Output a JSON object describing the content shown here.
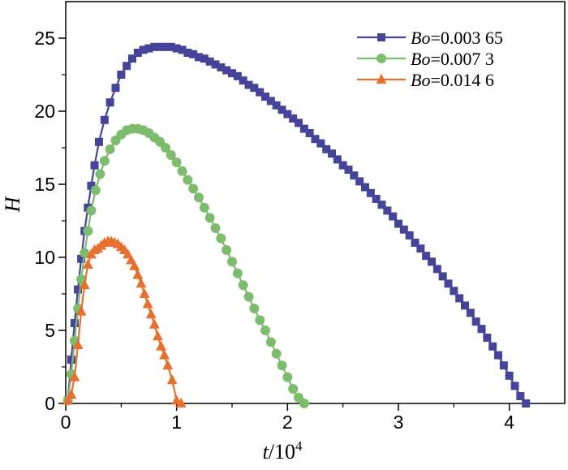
{
  "chart_data": {
    "type": "line",
    "title": "",
    "xlabel": {
      "var": "t",
      "unit": "/10",
      "exp": "4"
    },
    "ylabel": "H",
    "xlim": [
      0,
      4.5
    ],
    "ylim": [
      0,
      27.5
    ],
    "xticks": [
      0,
      1,
      2,
      3,
      4
    ],
    "yticks": [
      0,
      5,
      10,
      15,
      20,
      25
    ],
    "xtick_labels": [
      "0",
      "1",
      "2",
      "3",
      "4"
    ],
    "ytick_labels": [
      "0",
      "5",
      "10",
      "15",
      "20",
      "25"
    ],
    "grid": false,
    "legend_position": "top-right",
    "series": [
      {
        "name_var": "Bo",
        "name_value": "=0.003 65",
        "color": "#45449a",
        "marker": "square",
        "x": [
          0.02,
          0.05,
          0.08,
          0.11,
          0.14,
          0.17,
          0.2,
          0.23,
          0.26,
          0.3,
          0.35,
          0.4,
          0.45,
          0.5,
          0.55,
          0.6,
          0.65,
          0.7,
          0.75,
          0.8,
          0.85,
          0.9,
          0.95,
          1.0,
          1.05,
          1.1,
          1.15,
          1.2,
          1.25,
          1.3,
          1.35,
          1.4,
          1.45,
          1.5,
          1.55,
          1.6,
          1.65,
          1.7,
          1.75,
          1.8,
          1.85,
          1.9,
          1.95,
          2.0,
          2.05,
          2.1,
          2.15,
          2.2,
          2.25,
          2.3,
          2.35,
          2.4,
          2.45,
          2.5,
          2.55,
          2.6,
          2.65,
          2.7,
          2.75,
          2.8,
          2.85,
          2.9,
          2.95,
          3.0,
          3.05,
          3.1,
          3.15,
          3.2,
          3.25,
          3.3,
          3.35,
          3.4,
          3.45,
          3.5,
          3.55,
          3.6,
          3.65,
          3.7,
          3.75,
          3.8,
          3.85,
          3.9,
          3.95,
          4.0,
          4.05,
          4.1,
          4.15
        ],
        "y": [
          0.2,
          3.0,
          5.5,
          7.8,
          9.9,
          11.8,
          13.4,
          14.9,
          16.3,
          17.9,
          19.4,
          20.6,
          21.6,
          22.5,
          23.1,
          23.6,
          24.0,
          24.2,
          24.3,
          24.4,
          24.4,
          24.4,
          24.4,
          24.3,
          24.2,
          24.0,
          23.9,
          23.7,
          23.6,
          23.4,
          23.2,
          23.0,
          22.8,
          22.6,
          22.4,
          22.1,
          21.8,
          21.6,
          21.3,
          21.0,
          20.7,
          20.4,
          20.1,
          19.8,
          19.5,
          19.2,
          18.8,
          18.5,
          18.1,
          17.8,
          17.4,
          17.1,
          16.7,
          16.3,
          16.0,
          15.6,
          15.2,
          14.8,
          14.4,
          14.0,
          13.6,
          13.2,
          12.8,
          12.3,
          11.9,
          11.5,
          11.0,
          10.6,
          10.1,
          9.7,
          9.2,
          8.7,
          8.2,
          7.7,
          7.2,
          6.7,
          6.2,
          5.6,
          5.1,
          4.5,
          3.9,
          3.3,
          2.6,
          1.9,
          1.2,
          0.5,
          0.0
        ]
      },
      {
        "name_var": "Bo",
        "name_value": "=0.007 3",
        "color": "#7dbc6d",
        "marker": "circle",
        "x": [
          0.02,
          0.05,
          0.08,
          0.11,
          0.14,
          0.17,
          0.2,
          0.23,
          0.27,
          0.31,
          0.35,
          0.4,
          0.45,
          0.5,
          0.55,
          0.6,
          0.65,
          0.7,
          0.75,
          0.8,
          0.85,
          0.9,
          0.95,
          1.0,
          1.05,
          1.1,
          1.15,
          1.2,
          1.25,
          1.3,
          1.35,
          1.4,
          1.45,
          1.5,
          1.55,
          1.6,
          1.65,
          1.7,
          1.75,
          1.8,
          1.85,
          1.9,
          1.95,
          2.0,
          2.05,
          2.1,
          2.15
        ],
        "y": [
          0.2,
          2.0,
          4.3,
          6.5,
          8.5,
          10.3,
          11.8,
          13.2,
          14.6,
          15.7,
          16.6,
          17.4,
          18.0,
          18.4,
          18.7,
          18.8,
          18.8,
          18.7,
          18.5,
          18.2,
          17.9,
          17.5,
          17.0,
          16.5,
          15.9,
          15.3,
          14.7,
          14.1,
          13.4,
          12.7,
          12.0,
          11.3,
          10.5,
          9.7,
          8.9,
          8.1,
          7.3,
          6.5,
          5.7,
          5.0,
          4.2,
          3.4,
          2.6,
          1.8,
          1.0,
          0.4,
          0.0
        ]
      },
      {
        "name_var": "Bo",
        "name_value": "=0.014 6",
        "color": "#e8702e",
        "marker": "triangle",
        "x": [
          0.02,
          0.05,
          0.08,
          0.11,
          0.14,
          0.17,
          0.2,
          0.23,
          0.26,
          0.29,
          0.32,
          0.35,
          0.38,
          0.41,
          0.44,
          0.47,
          0.5,
          0.53,
          0.56,
          0.59,
          0.62,
          0.65,
          0.68,
          0.71,
          0.74,
          0.77,
          0.8,
          0.83,
          0.86,
          0.89,
          0.92,
          0.96,
          1.0,
          1.04
        ],
        "y": [
          0.2,
          0.6,
          1.8,
          4.0,
          6.3,
          8.1,
          9.5,
          10.2,
          10.5,
          10.6,
          10.8,
          11.0,
          11.1,
          11.1,
          11.0,
          10.9,
          10.7,
          10.5,
          10.2,
          9.8,
          9.4,
          8.8,
          8.2,
          7.5,
          6.8,
          6.1,
          5.4,
          4.6,
          3.9,
          3.3,
          2.6,
          1.6,
          0.2,
          0.0
        ]
      }
    ]
  }
}
